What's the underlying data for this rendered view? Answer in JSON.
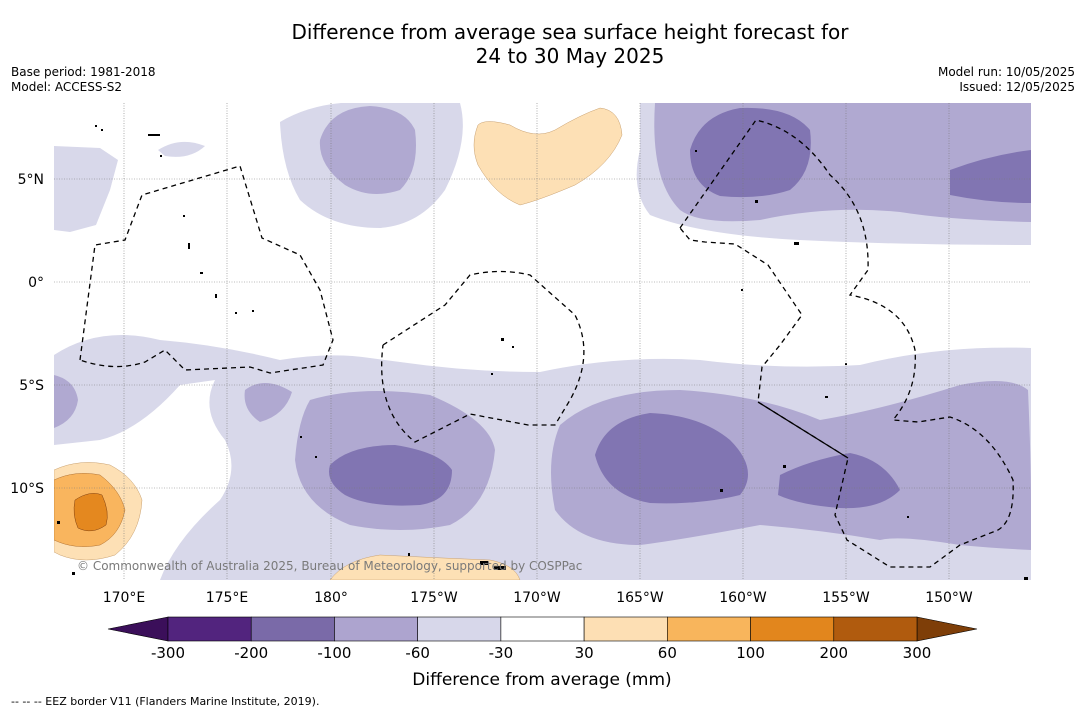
{
  "title": {
    "line1": "Difference from average sea surface height forecast for",
    "line2": "24 to 30 May 2025"
  },
  "meta_left": {
    "base_period": "Base period: 1981-2018",
    "model": "Model: ACCESS-S2"
  },
  "meta_right": {
    "model_run": "Model run: 10/05/2025",
    "issued": "Issued: 12/05/2025"
  },
  "map": {
    "lat_labels": [
      "5°N",
      "0°",
      "5°S",
      "10°S"
    ],
    "lon_labels": [
      "170°E",
      "175°E",
      "180°",
      "175°W",
      "170°W",
      "165°W",
      "160°W",
      "155°W",
      "150°W"
    ],
    "copyright": "© Commonwealth of Australia 2025, Bureau of Meteorology, supported by COSPPac",
    "colors": {
      "light_purple": "#d8d8ea",
      "mid_purple": "#b0a9d1",
      "dark_purple": "#8175b2",
      "light_orange": "#fde0b5",
      "mid_orange": "#f9b55e",
      "dark_orange": "#e4881f"
    }
  },
  "colorbar": {
    "label": "Difference from average (mm)",
    "ticks": [
      "-300",
      "-200",
      "-100",
      "-60",
      "-30",
      "30",
      "60",
      "100",
      "200",
      "300"
    ],
    "colors": [
      "#52247e",
      "#7a6aa8",
      "#ada4cf",
      "#d7d7ea",
      "#ffffff",
      "#fddfb4",
      "#f8b55c",
      "#e2861d",
      "#b05b0e"
    ],
    "extend_low": "#3b0f5a",
    "extend_high": "#7e3e08"
  },
  "footer": {
    "eez_note": "--  --  -- EEZ border V11 (Flanders Marine Institute, 2019)."
  }
}
